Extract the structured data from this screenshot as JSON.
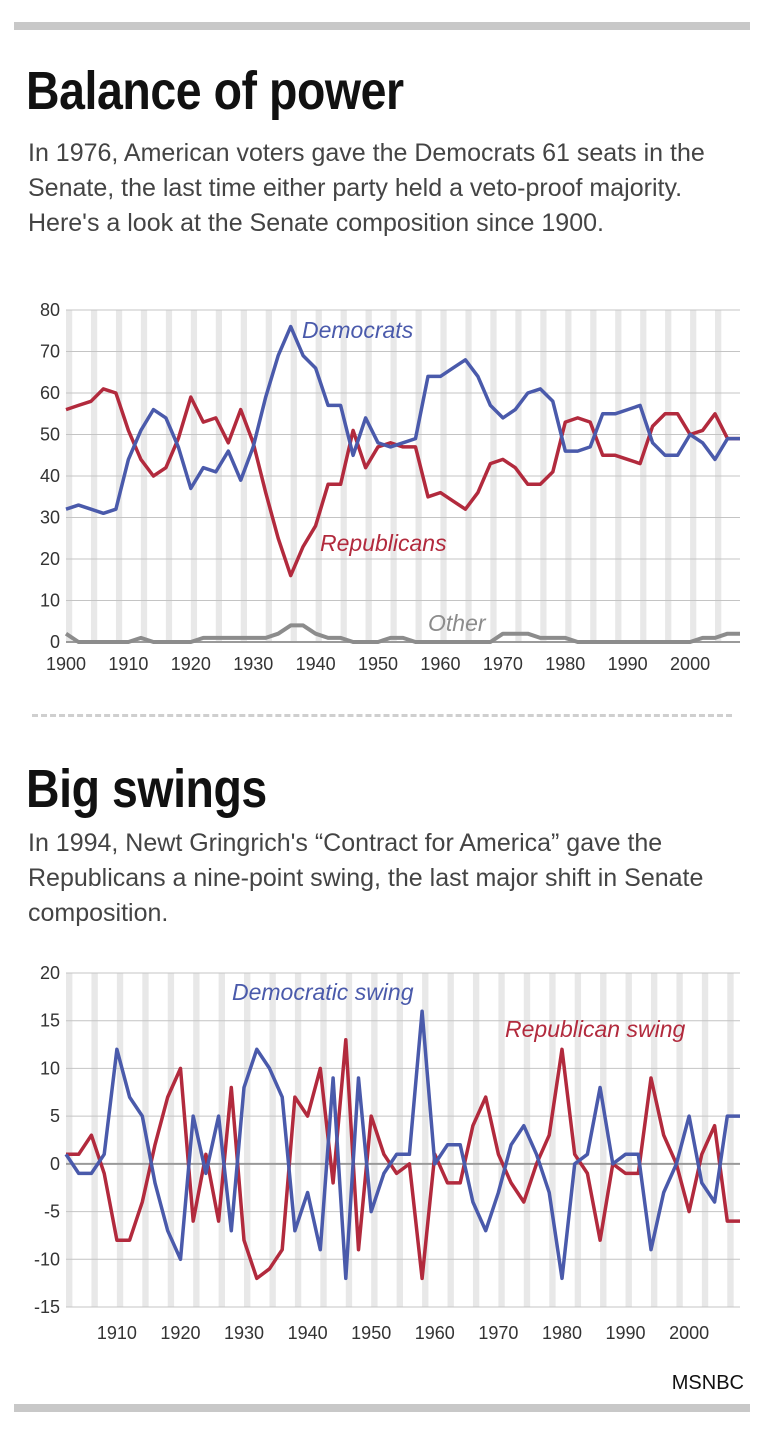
{
  "section1": {
    "title": "Balance of power",
    "description": "In 1976, American voters gave the Democrats 61 seats in the Senate, the last time either party held a veto-proof majority. Here's a look at the Senate composition since 1900."
  },
  "section2": {
    "title": "Big swings",
    "description": "In 1994, Newt Gringrich's “Contract for America” gave the Republicans a nine-point swing, the last major shift in Senate composition."
  },
  "source": "MSNBC",
  "colors": {
    "democrat": "#4a5aab",
    "republican": "#b22a3d",
    "other": "#8c8c8c",
    "stripe": "#e8e8e8",
    "grid": "#c4c4c4"
  },
  "chart_data": [
    {
      "type": "line",
      "x": [
        1900,
        1902,
        1904,
        1906,
        1908,
        1910,
        1912,
        1914,
        1916,
        1918,
        1920,
        1922,
        1924,
        1926,
        1928,
        1930,
        1932,
        1934,
        1936,
        1938,
        1940,
        1942,
        1944,
        1946,
        1948,
        1950,
        1952,
        1954,
        1956,
        1958,
        1960,
        1962,
        1964,
        1966,
        1968,
        1970,
        1972,
        1974,
        1976,
        1978,
        1980,
        1982,
        1984,
        1986,
        1988,
        1990,
        1992,
        1994,
        1996,
        1998,
        2000,
        2002,
        2004,
        2006,
        2008
      ],
      "series": [
        {
          "name": "Democrats",
          "values": [
            32,
            33,
            32,
            31,
            32,
            44,
            51,
            56,
            54,
            47,
            37,
            42,
            41,
            46,
            39,
            47,
            59,
            69,
            76,
            69,
            66,
            57,
            57,
            45,
            54,
            48,
            47,
            48,
            49,
            64,
            64,
            66,
            68,
            64,
            57,
            54,
            56,
            60,
            61,
            58,
            46,
            46,
            47,
            55,
            55,
            56,
            57,
            48,
            45,
            45,
            50,
            48,
            44,
            49,
            49
          ]
        },
        {
          "name": "Republicans",
          "values": [
            56,
            57,
            58,
            61,
            60,
            51,
            44,
            40,
            42,
            49,
            59,
            53,
            54,
            48,
            56,
            48,
            36,
            25,
            16,
            23,
            28,
            38,
            38,
            51,
            42,
            47,
            48,
            47,
            47,
            35,
            36,
            34,
            32,
            36,
            43,
            44,
            42,
            38,
            38,
            41,
            53,
            54,
            53,
            45,
            45,
            44,
            43,
            52,
            55,
            55,
            50,
            51,
            55,
            49,
            49
          ]
        },
        {
          "name": "Other",
          "values": [
            2,
            0,
            0,
            0,
            0,
            0,
            1,
            0,
            0,
            0,
            0,
            1,
            1,
            1,
            1,
            1,
            1,
            2,
            4,
            4,
            2,
            1,
            1,
            0,
            0,
            0,
            1,
            1,
            0,
            0,
            0,
            0,
            0,
            0,
            0,
            2,
            2,
            2,
            1,
            1,
            1,
            0,
            0,
            0,
            0,
            0,
            0,
            0,
            0,
            0,
            0,
            1,
            1,
            2,
            2
          ]
        }
      ],
      "title": "Balance of power",
      "xlabel": "",
      "ylabel": "",
      "xlim": [
        1900,
        2008
      ],
      "ylim": [
        0,
        80
      ],
      "yticks": [
        "0",
        "10",
        "20",
        "30",
        "40",
        "50",
        "60",
        "70",
        "80"
      ],
      "xticks": [
        "1900",
        "1910",
        "1920",
        "1930",
        "1940",
        "1950",
        "1960",
        "1970",
        "1980",
        "1990",
        "2000"
      ],
      "xtick_values": [
        1900,
        1910,
        1920,
        1930,
        1940,
        1950,
        1960,
        1970,
        1980,
        1990,
        2000
      ],
      "labels": {
        "democrats": "Democrats",
        "republicans": "Republicans",
        "other": "Other"
      }
    },
    {
      "type": "line",
      "x": [
        1902,
        1904,
        1906,
        1908,
        1910,
        1912,
        1914,
        1916,
        1918,
        1920,
        1922,
        1924,
        1926,
        1928,
        1930,
        1932,
        1934,
        1936,
        1938,
        1940,
        1942,
        1944,
        1946,
        1948,
        1950,
        1952,
        1954,
        1956,
        1958,
        1960,
        1962,
        1964,
        1966,
        1968,
        1970,
        1972,
        1974,
        1976,
        1978,
        1980,
        1982,
        1984,
        1986,
        1988,
        1990,
        1992,
        1994,
        1996,
        1998,
        2000,
        2002,
        2004,
        2006,
        2008
      ],
      "series": [
        {
          "name": "Democratic swing",
          "values": [
            1,
            -1,
            -1,
            1,
            12,
            7,
            5,
            -2,
            -7,
            -10,
            5,
            -1,
            5,
            -7,
            8,
            12,
            10,
            7,
            -7,
            -3,
            -9,
            9,
            -12,
            9,
            -5,
            -1,
            1,
            1,
            16,
            0,
            2,
            2,
            -4,
            -7,
            -3,
            2,
            4,
            1,
            -3,
            -12,
            0,
            1,
            8,
            0,
            1,
            1,
            -9,
            -3,
            0,
            5,
            -2,
            -4,
            5,
            5
          ]
        },
        {
          "name": "Republican swing",
          "values": [
            1,
            1,
            3,
            -1,
            -8,
            -8,
            -4,
            2,
            7,
            10,
            -6,
            1,
            -6,
            8,
            -8,
            -12,
            -11,
            -9,
            7,
            5,
            10,
            -2,
            13,
            -9,
            5,
            1,
            -1,
            0,
            -12,
            1,
            -2,
            -2,
            4,
            7,
            1,
            -2,
            -4,
            0,
            3,
            12,
            1,
            -1,
            -8,
            0,
            -1,
            -1,
            9,
            3,
            0,
            -5,
            1,
            4,
            -6,
            -6
          ]
        }
      ],
      "title": "Big swings",
      "xlabel": "",
      "ylabel": "",
      "xlim": [
        1902,
        2008
      ],
      "ylim": [
        -15,
        20
      ],
      "yticks": [
        "-15",
        "-10",
        "-5",
        "0",
        "5",
        "10",
        "15",
        "20"
      ],
      "xticks": [
        "1910",
        "1920",
        "1930",
        "1940",
        "1950",
        "1960",
        "1970",
        "1980",
        "1990",
        "2000"
      ],
      "xtick_values": [
        1910,
        1920,
        1930,
        1940,
        1950,
        1960,
        1970,
        1980,
        1990,
        2000
      ],
      "labels": {
        "democratic": "Democratic swing",
        "republican": "Republican swing"
      }
    }
  ]
}
